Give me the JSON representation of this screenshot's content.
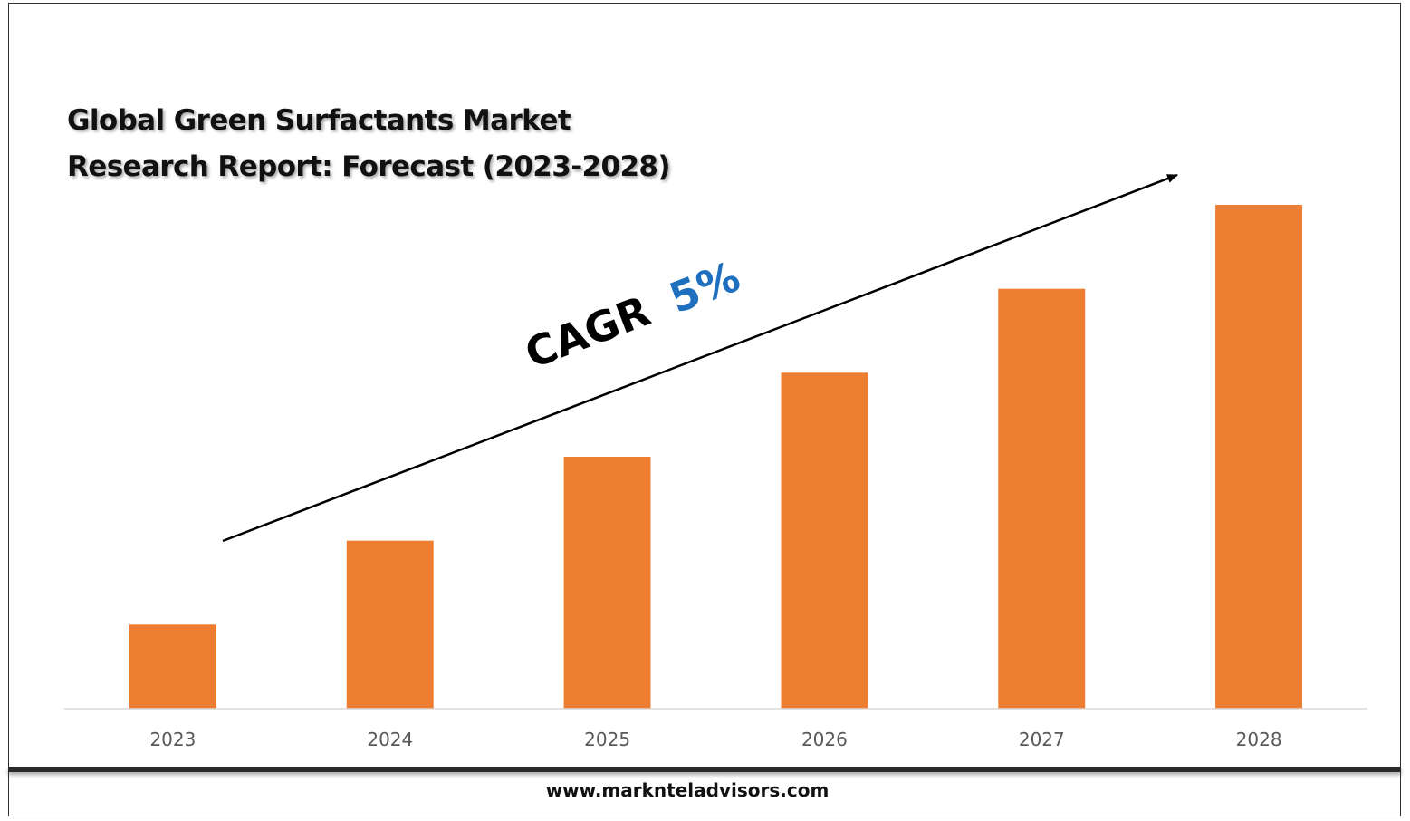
{
  "title": {
    "line1": "Global Green Surfactants Market",
    "line2": "Research Report: Forecast (2023-2028)"
  },
  "annotation": {
    "cagr_label": "CAGR",
    "cagr_value": "5%",
    "cagr_value_color": "#1F6FBF"
  },
  "footer": {
    "url": "www.marknteladvisors.com"
  },
  "chart_data": {
    "type": "bar",
    "title": "Global Green Surfactants Market Research Report: Forecast (2023-2028)",
    "categories": [
      "2023",
      "2024",
      "2025",
      "2026",
      "2027",
      "2028"
    ],
    "values": [
      1,
      2,
      3,
      4,
      5,
      6
    ],
    "ylim": [
      0,
      6
    ],
    "bar_color": "#ED7D31",
    "grid": false,
    "legend": "none",
    "xlabel": "",
    "ylabel": ""
  }
}
